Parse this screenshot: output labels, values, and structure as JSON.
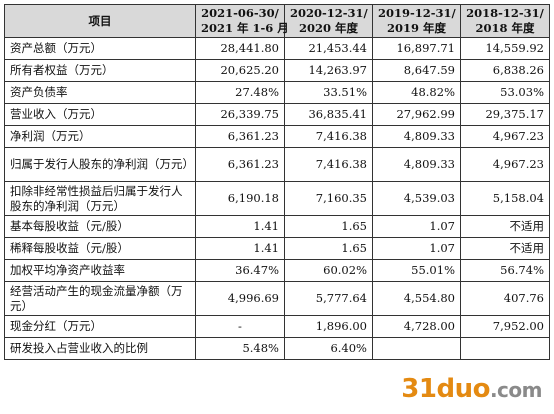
{
  "table": {
    "header": {
      "item": "项目",
      "col1_line1": "2021-06-30/",
      "col1_line2": "2021 年 1-6 月",
      "col2_line1": "2020-12-31/",
      "col2_line2": "2020 年度",
      "col3_line1": "2019-12-31/",
      "col3_line2": "2019 年度",
      "col4_line1": "2018-12-31/",
      "col4_line2": "2018 年度"
    },
    "rows": [
      {
        "label": "资产总额（万元）",
        "v1": "28,441.80",
        "v2": "21,453.44",
        "v3": "16,897.71",
        "v4": "14,559.92"
      },
      {
        "label": "所有者权益（万元）",
        "v1": "20,625.20",
        "v2": "14,263.97",
        "v3": "8,647.59",
        "v4": "6,838.26"
      },
      {
        "label": "资产负债率",
        "v1": "27.48%",
        "v2": "33.51%",
        "v3": "48.82%",
        "v4": "53.03%"
      },
      {
        "label": "营业收入（万元）",
        "v1": "26,339.75",
        "v2": "36,835.41",
        "v3": "27,962.99",
        "v4": "29,375.17"
      },
      {
        "label": "净利润（万元）",
        "v1": "6,361.23",
        "v2": "7,416.38",
        "v3": "4,809.33",
        "v4": "4,967.23"
      },
      {
        "label": "归属于发行人股东的净利润（万元）",
        "v1": "6,361.23",
        "v2": "7,416.38",
        "v3": "4,809.33",
        "v4": "4,967.23"
      },
      {
        "label": "扣除非经常性损益后归属于发行人股东的净利润（万元）",
        "v1": "6,190.18",
        "v2": "7,160.35",
        "v3": "4,539.03",
        "v4": "5,158.04"
      },
      {
        "label": "基本每股收益（元/股）",
        "v1": "1.41",
        "v2": "1.65",
        "v3": "1.07",
        "v4": "不适用"
      },
      {
        "label": "稀释每股收益（元/股）",
        "v1": "1.41",
        "v2": "1.65",
        "v3": "1.07",
        "v4": "不适用"
      },
      {
        "label": "加权平均净资产收益率",
        "v1": "36.47%",
        "v2": "60.02%",
        "v3": "55.01%",
        "v4": "56.74%"
      },
      {
        "label": "经营活动产生的现金流量净额（万元）",
        "v1": "4,996.69",
        "v2": "5,777.64",
        "v3": "4,554.80",
        "v4": "407.76"
      },
      {
        "label": "现金分红（万元）",
        "v1": "-",
        "v2": "1,896.00",
        "v3": "4,728.00",
        "v4": "7,952.00"
      },
      {
        "label": "研发投入占营业收入的比例",
        "v1": "5.48%",
        "v2": "6.40%",
        "v3": "",
        "v4": ""
      }
    ]
  },
  "watermark": {
    "num": "31",
    "word": "duo",
    "dom": ".com"
  }
}
